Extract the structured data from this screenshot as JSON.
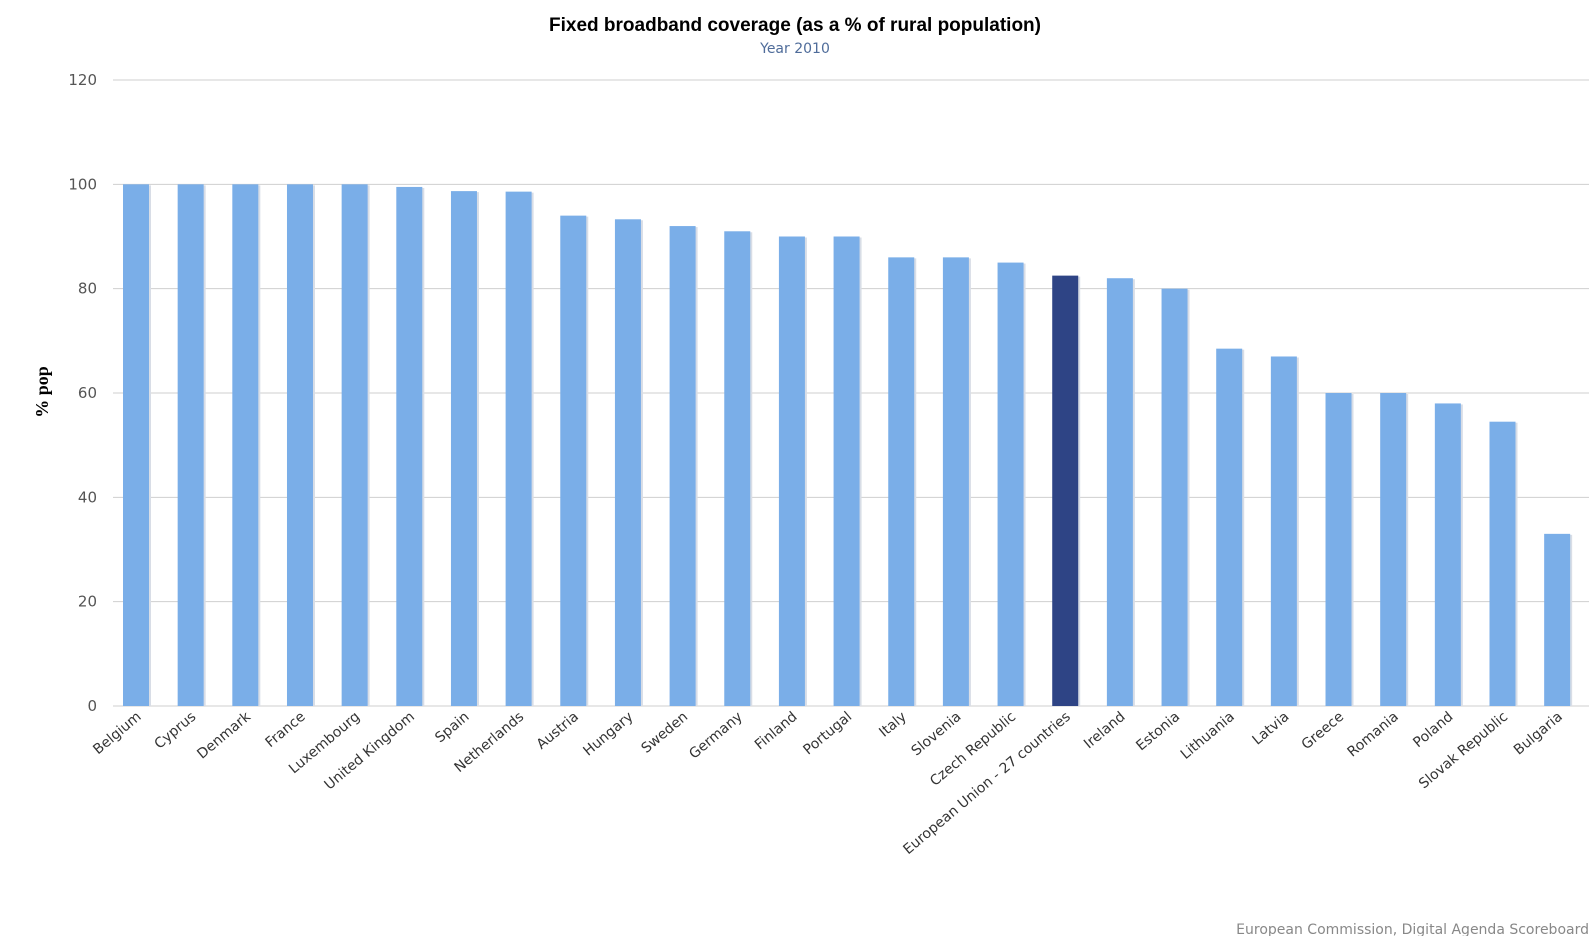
{
  "chart_data": {
    "type": "bar",
    "title": "Fixed broadband coverage (as a % of rural population)",
    "subtitle": "Year 2010",
    "ylabel": "% pop",
    "xlabel": "",
    "ylim": [
      0,
      120
    ],
    "yticks": [
      0,
      20,
      40,
      60,
      80,
      100,
      120
    ],
    "grid": true,
    "categories": [
      "Belgium",
      "Cyprus",
      "Denmark",
      "France",
      "Luxembourg",
      "United Kingdom",
      "Spain",
      "Netherlands",
      "Austria",
      "Hungary",
      "Sweden",
      "Germany",
      "Finland",
      "Portugal",
      "Italy",
      "Slovenia",
      "Czech Republic",
      "European Union - 27 countries",
      "Ireland",
      "Estonia",
      "Lithuania",
      "Latvia",
      "Greece",
      "Romania",
      "Poland",
      "Slovak Republic",
      "Bulgaria"
    ],
    "values": [
      100,
      100,
      100,
      100,
      100,
      99.5,
      98.7,
      98.6,
      94,
      93.3,
      92,
      91,
      90,
      90,
      86,
      86,
      85,
      82.5,
      82,
      80,
      68.5,
      67,
      60,
      60,
      58,
      54.5,
      33
    ],
    "highlight_category": "European Union - 27 countries",
    "colors": {
      "bar": "#7aaee8",
      "highlight": "#2e4485",
      "grid": "#cfcfcf"
    },
    "credit": "European Commission, Digital Agenda Scoreboard"
  }
}
